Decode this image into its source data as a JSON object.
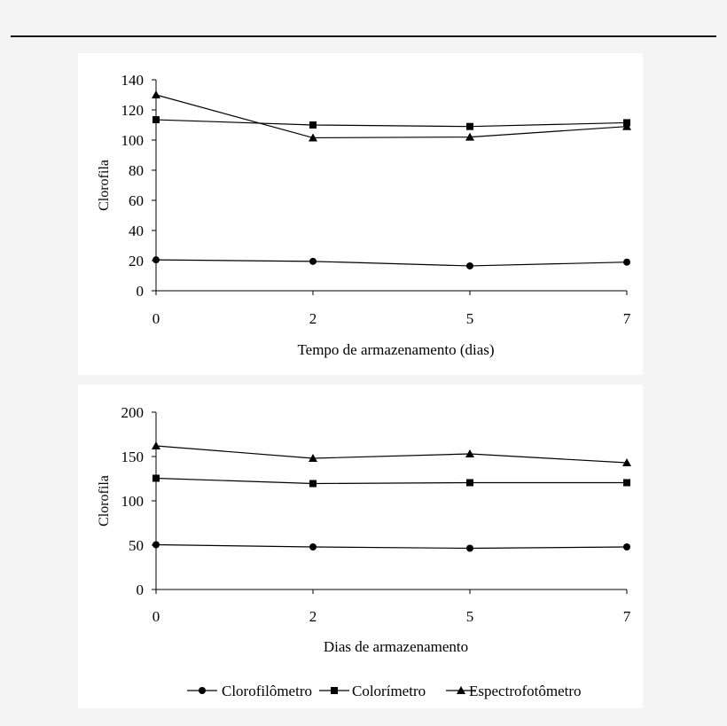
{
  "chart_data": [
    {
      "type": "line",
      "title": "",
      "xlabel": "Tempo de armazenamento (dias)",
      "ylabel": "Clorofila",
      "categories": [
        "0",
        "2",
        "5",
        "7"
      ],
      "ylim": [
        0,
        140
      ],
      "yticks": [
        0,
        20,
        40,
        60,
        80,
        100,
        120,
        140
      ],
      "series": [
        {
          "name": "Clorofilômetro",
          "marker": "circle",
          "values": [
            20.5,
            19.5,
            16.5,
            19
          ]
        },
        {
          "name": "Colorímetro",
          "marker": "square",
          "values": [
            113.5,
            110,
            109,
            111.5
          ]
        },
        {
          "name": "Espectrofotômetro",
          "marker": "triangle",
          "values": [
            130,
            101.5,
            102,
            109
          ]
        }
      ]
    },
    {
      "type": "line",
      "title": "",
      "xlabel": "Dias de armazenamento",
      "ylabel": "Clorofila",
      "categories": [
        "0",
        "2",
        "5",
        "7"
      ],
      "ylim": [
        0,
        200
      ],
      "yticks": [
        0,
        50,
        100,
        150,
        200
      ],
      "series": [
        {
          "name": "Clorofilômetro",
          "marker": "circle",
          "values": [
            50.5,
            48,
            46.5,
            48
          ]
        },
        {
          "name": "Colorímetro",
          "marker": "square",
          "values": [
            125.5,
            119.5,
            120.5,
            120.5
          ]
        },
        {
          "name": "Espectrofotômetro",
          "marker": "triangle",
          "values": [
            162,
            148,
            153,
            143
          ]
        }
      ]
    }
  ],
  "legend": {
    "items": [
      {
        "label": "Clorofilômetro",
        "marker": "circle"
      },
      {
        "label": "Colorímetro",
        "marker": "square"
      },
      {
        "label": "Espectrofotômetro",
        "marker": "triangle"
      }
    ]
  }
}
